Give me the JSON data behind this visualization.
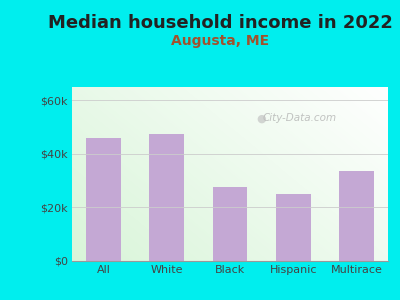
{
  "title": "Median household income in 2022",
  "subtitle": "Augusta, ME",
  "categories": [
    "All",
    "White",
    "Black",
    "Hispanic",
    "Multirace"
  ],
  "values": [
    46000,
    47500,
    27500,
    25000,
    33500
  ],
  "bar_color": "#C4A8D4",
  "title_fontsize": 13,
  "subtitle_fontsize": 10,
  "subtitle_color": "#A0522D",
  "tick_label_color": "#444444",
  "background_outer": "#00EEEE",
  "yticks": [
    0,
    20000,
    40000,
    60000
  ],
  "ytick_labels": [
    "$0",
    "$20k",
    "$40k",
    "$60k"
  ],
  "ylim": [
    0,
    65000
  ],
  "watermark": "City-Data.com"
}
